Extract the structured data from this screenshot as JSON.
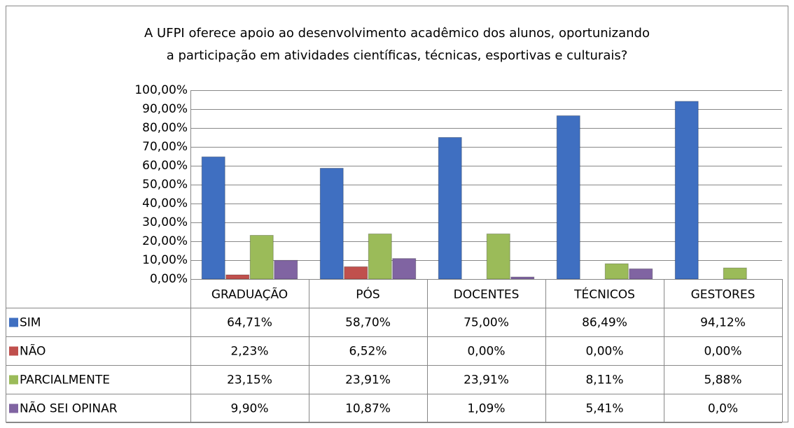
{
  "chart_data": {
    "type": "bar",
    "title": [
      "A UFPI oferece apoio ao desenvolvimento acadêmico dos alunos,  oportunizando",
      "a participação em atividades científicas, técnicas, esportivas e culturais?"
    ],
    "categories": [
      "GRADUAÇÃO",
      "PÓS",
      "DOCENTES",
      "TÉCNICOS",
      "GESTORES"
    ],
    "series": [
      {
        "name": "SIM",
        "color": "#3f6fc1",
        "values": [
          64.71,
          58.7,
          75.0,
          86.49,
          94.12
        ],
        "value_labels": [
          "64,71%",
          "58,70%",
          "75,00%",
          "86,49%",
          "94,12%"
        ]
      },
      {
        "name": "NÃO",
        "color": "#c0504d",
        "values": [
          2.23,
          6.52,
          0.0,
          0.0,
          0.0
        ],
        "value_labels": [
          "2,23%",
          "6,52%",
          "0,00%",
          "0,00%",
          "0,00%"
        ]
      },
      {
        "name": "PARCIALMENTE",
        "color": "#9bbb59",
        "values": [
          23.15,
          23.91,
          23.91,
          8.11,
          5.88
        ],
        "value_labels": [
          "23,15%",
          "23,91%",
          "23,91%",
          "8,11%",
          "5,88%"
        ]
      },
      {
        "name": "NÃO SEI OPINAR",
        "color": "#8064a2",
        "values": [
          9.9,
          10.87,
          1.09,
          5.41,
          0.0
        ],
        "value_labels": [
          "9,90%",
          "10,87%",
          "1,09%",
          "5,41%",
          "0,0%"
        ]
      }
    ],
    "ylim": [
      0,
      100
    ],
    "yticks": [
      {
        "value": 0,
        "label": "0,00%"
      },
      {
        "value": 10,
        "label": "10,00%"
      },
      {
        "value": 20,
        "label": "20,00%"
      },
      {
        "value": 30,
        "label": "30,00%"
      },
      {
        "value": 40,
        "label": "40,00%"
      },
      {
        "value": 50,
        "label": "50,00%"
      },
      {
        "value": 60,
        "label": "60,00%"
      },
      {
        "value": 70,
        "label": "70,00%"
      },
      {
        "value": 80,
        "label": "80,00%"
      },
      {
        "value": 90,
        "label": "90,00%"
      },
      {
        "value": 100,
        "label": "100,00%"
      }
    ],
    "grid": true
  }
}
